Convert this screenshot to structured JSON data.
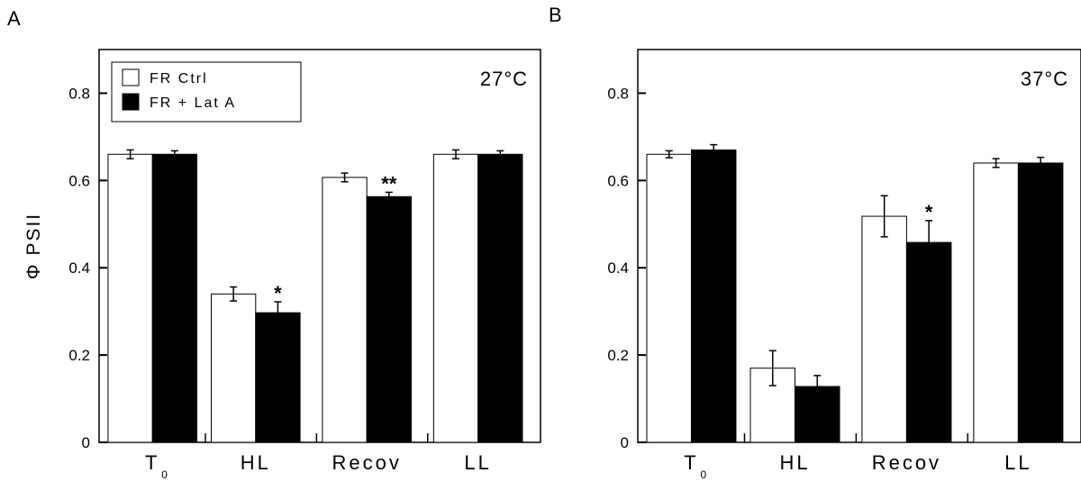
{
  "chart_data": [
    {
      "type": "bar",
      "panel_label": "A",
      "temperature": "27°C",
      "ylabel": "Φ PSII",
      "ylim": [
        0,
        0.9
      ],
      "yticks": [
        "0",
        "0.2",
        "0.4",
        "0.6",
        "0.8"
      ],
      "ytick_values": [
        0,
        0.2,
        0.4,
        0.6,
        0.8
      ],
      "categories": [
        {
          "main": "T",
          "sub": "0"
        },
        {
          "main": "HL",
          "sub": ""
        },
        {
          "main": "Recov",
          "sub": ""
        },
        {
          "main": "LL",
          "sub": ""
        }
      ],
      "legend": {
        "position": "top-left",
        "entries": [
          "FR  Ctrl",
          "FR  + Lat A"
        ]
      },
      "series": [
        {
          "name": "FR  Ctrl",
          "color": "#ffffff",
          "values": [
            0.66,
            0.34,
            0.607,
            0.66
          ],
          "errors": [
            0.01,
            0.016,
            0.01,
            0.01
          ]
        },
        {
          "name": "FR  + Lat A",
          "color": "#000000",
          "values": [
            0.66,
            0.297,
            0.563,
            0.66
          ],
          "errors": [
            0.008,
            0.025,
            0.01,
            0.008
          ]
        }
      ],
      "annotations": [
        "",
        "*",
        "**",
        ""
      ]
    },
    {
      "type": "bar",
      "panel_label": "B",
      "temperature": "37°C",
      "ylabel": "",
      "ylim": [
        0,
        0.9
      ],
      "yticks": [
        "0",
        "0.2",
        "0.4",
        "0.6",
        "0.8"
      ],
      "ytick_values": [
        0,
        0.2,
        0.4,
        0.6,
        0.8
      ],
      "categories": [
        {
          "main": "T",
          "sub": "0"
        },
        {
          "main": "HL",
          "sub": ""
        },
        {
          "main": "Recov",
          "sub": ""
        },
        {
          "main": "LL",
          "sub": ""
        }
      ],
      "series": [
        {
          "name": "FR  Ctrl",
          "color": "#ffffff",
          "values": [
            0.66,
            0.17,
            0.518,
            0.64
          ],
          "errors": [
            0.008,
            0.04,
            0.047,
            0.01
          ]
        },
        {
          "name": "FR  + Lat A",
          "color": "#000000",
          "values": [
            0.67,
            0.128,
            0.458,
            0.64
          ],
          "errors": [
            0.012,
            0.025,
            0.05,
            0.013
          ]
        }
      ],
      "annotations": [
        "",
        "",
        "*",
        ""
      ]
    }
  ]
}
